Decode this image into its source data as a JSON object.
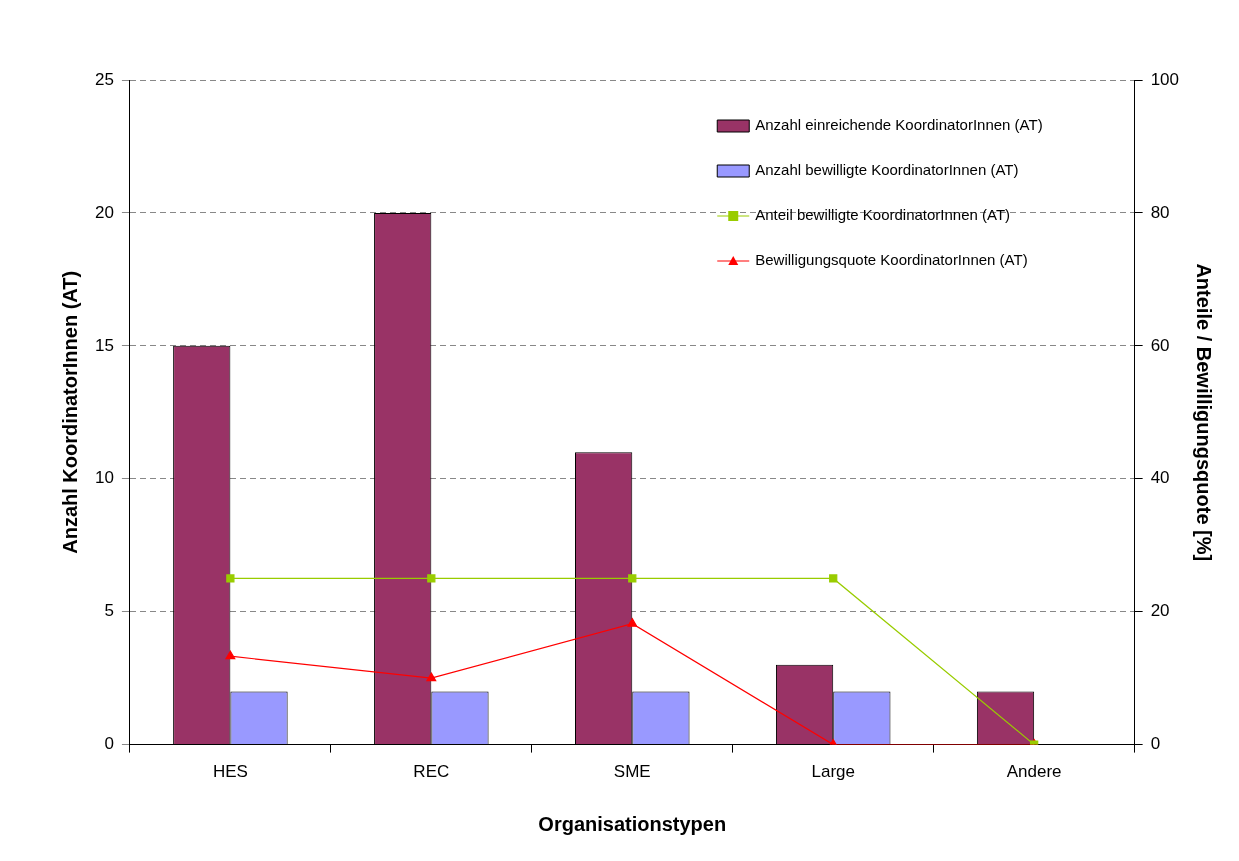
{
  "chart_data": {
    "type": "bar",
    "xlabel": "Organisationstypen",
    "ylabel": "Anzahl KoordinatorInnen (AT)",
    "y2label": "Anteile / Bewilligungsquote [%]",
    "categories": [
      "HES",
      "REC",
      "SME",
      "Large",
      "Andere"
    ],
    "series": [
      {
        "name": "Anzahl einreichende KoordinatorInnen (AT)",
        "color": "#993366",
        "values": [
          15,
          20,
          11,
          3,
          2
        ]
      },
      {
        "name": "Anzahl bewilligte KoordinatorInnen (AT)",
        "color": "#9999ff",
        "values": [
          2,
          2,
          2,
          2,
          null
        ]
      },
      {
        "name": "Anteil bewilligte KoordinatorInnen (AT)",
        "type": "line",
        "axis": "y2",
        "marker": "square",
        "color": "#99cc00",
        "values": [
          25,
          25,
          25,
          25,
          0
        ]
      },
      {
        "name": "Bewilligungsquote KoordinatorInnen (AT)",
        "type": "line",
        "axis": "y2",
        "marker": "triangle",
        "color": "#ff0000",
        "values": [
          13.3,
          10,
          18.2,
          0,
          0
        ]
      }
    ],
    "ylim": [
      0,
      25
    ],
    "yticks": [
      0,
      5,
      10,
      15,
      20,
      25
    ],
    "y2lim": [
      0,
      100
    ],
    "y2ticks": [
      0,
      20,
      40,
      60,
      80,
      100
    ],
    "grid": "y",
    "legend": "top right"
  }
}
